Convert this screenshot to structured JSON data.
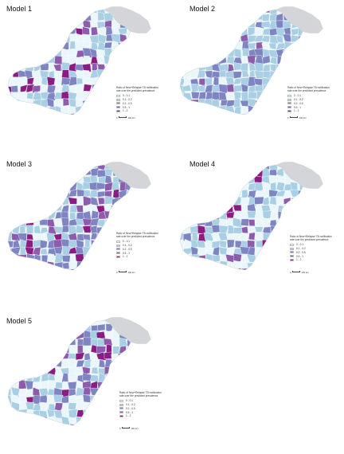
{
  "panels": [
    {
      "title": "Model 1",
      "variant": 0
    },
    {
      "title": "Model 2",
      "variant": 1
    },
    {
      "title": "Model 3",
      "variant": 2
    },
    {
      "title": "Model 4",
      "variant": 3
    },
    {
      "title": "Model 5",
      "variant": 4
    }
  ],
  "legend": {
    "title": "Ratio of New+Relapse TB notification rate over the predicted prevalence",
    "classes": [
      {
        "label": "0 - 0.1",
        "color": "#eaf6fa"
      },
      {
        "label": "0.1 - 0.2",
        "color": "#a9cfe4"
      },
      {
        "label": "0.2 - 0.5",
        "color": "#7f85c2"
      },
      {
        "label": "0.5 - 1",
        "color": "#8e5cac"
      },
      {
        "label": "1 - 2",
        "color": "#8a1c84"
      }
    ],
    "no_data_color": "#d3d5d8"
  },
  "scale": {
    "zero": "0",
    "distance": "100 km"
  }
}
